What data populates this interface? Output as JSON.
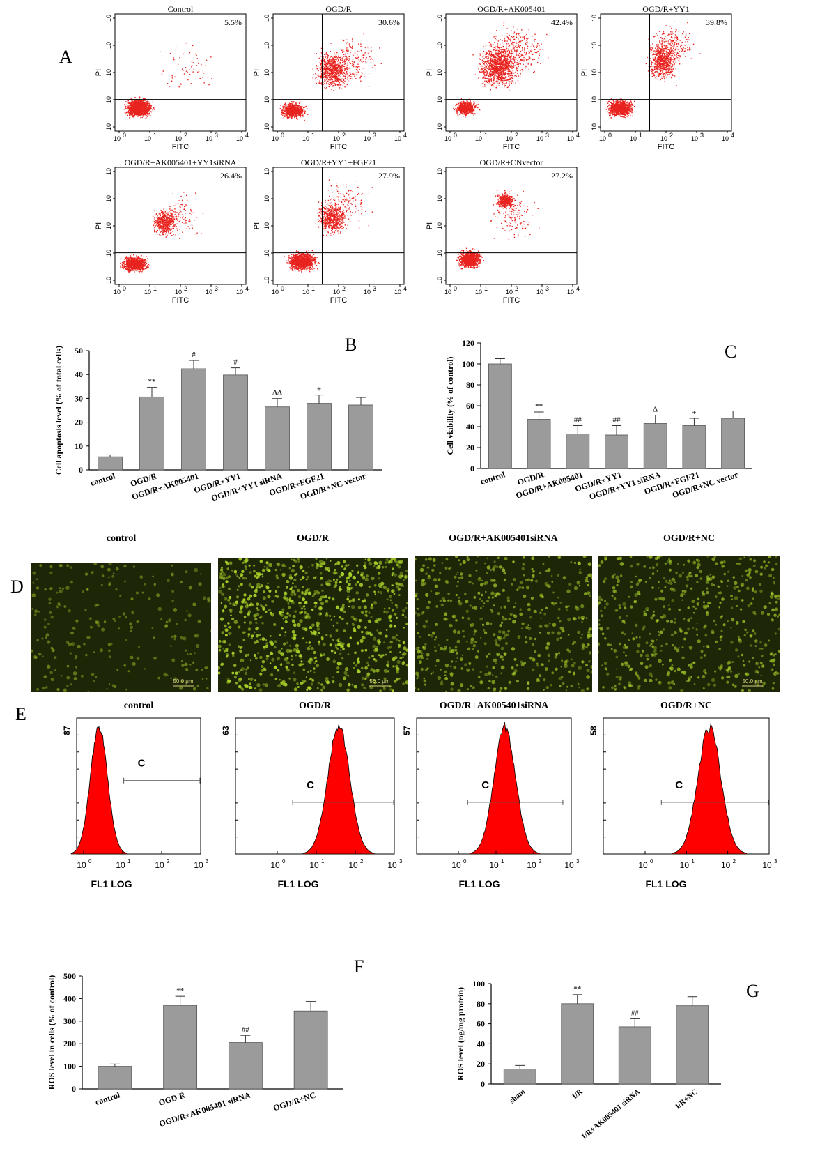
{
  "panel_letters": [
    "A",
    "B",
    "C",
    "D",
    "E",
    "F",
    "G"
  ],
  "flow_axes": {
    "x": "FITC",
    "y": "PI",
    "ticks": [
      "10",
      "10",
      "10",
      "10",
      "10"
    ],
    "exps": [
      "0",
      "1",
      "2",
      "3",
      "4"
    ]
  },
  "flow_panels": [
    {
      "title": "Control",
      "pct": "5.5%"
    },
    {
      "title": "OGD/R",
      "pct": "30.6%"
    },
    {
      "title": "OGD/R+AK005401",
      "pct": "42.4%"
    },
    {
      "title": "OGD/R+YY1",
      "pct": "39.8%"
    },
    {
      "title": "OGD/R+AK005401+YY1siRNA",
      "pct": "26.4%"
    },
    {
      "title": "OGD/R+YY1+FGF21",
      "pct": "27.9%"
    },
    {
      "title": "OGD/R+CNvector",
      "pct": "27.2%"
    }
  ],
  "micro_panels": [
    {
      "title": "control",
      "scale": "50.0 μm"
    },
    {
      "title": "OGD/R",
      "scale": "50.0 μm"
    },
    {
      "title": "OGD/R+AK005401siRNA",
      "scale": ""
    },
    {
      "title": "OGD/R+NC",
      "scale": "50.0 μm"
    }
  ],
  "hist_panels": [
    {
      "title": "control",
      "ymax": "87",
      "gate": "C",
      "xlabel": "FL1 LOG"
    },
    {
      "title": "OGD/R",
      "ymax": "63",
      "gate": "C",
      "xlabel": "FL1 LOG"
    },
    {
      "title": "OGD/R+AK005401siRNA",
      "ymax": "57",
      "gate": "C",
      "xlabel": "FL1 LOG"
    },
    {
      "title": "OGD/R+NC",
      "ymax": "58",
      "gate": "C",
      "xlabel": "FL1 LOG"
    }
  ],
  "colors": {
    "bar": "#9b9b9b",
    "dots": "#e8231f",
    "micro_bg": "#1e2608",
    "micro_cell": "#a8d028"
  },
  "chart_data": [
    {
      "id": "B",
      "type": "bar",
      "categories": [
        "control",
        "OGD/R",
        "OGD/R+AK005401",
        "OGD/R+YY1",
        "OGD/R+YY1 siRNA",
        "OGD/R+FGF21",
        "OGD/R+NC vector"
      ],
      "values": [
        5.5,
        30.6,
        42.4,
        39.8,
        26.4,
        27.9,
        27.2
      ],
      "errors": [
        0.8,
        4,
        3.5,
        3,
        3.5,
        3.5,
        3.2
      ],
      "marks": [
        "",
        "**",
        "#",
        "#",
        "ΔΔ",
        "+",
        ""
      ],
      "ylabel": "Cell apoptosis level (% of total cells)",
      "ylim": [
        0,
        50
      ],
      "yticks": [
        0,
        10,
        20,
        30,
        40,
        50
      ]
    },
    {
      "id": "C",
      "type": "bar",
      "categories": [
        "control",
        "OGD/R",
        "OGD/R+AK005401",
        "OGD/R+YY1",
        "OGD/R+YY1 siRNA",
        "OGD/R+FGF21",
        "OGD/R+NC vector"
      ],
      "values": [
        100,
        47,
        33,
        32,
        43,
        41,
        48
      ],
      "errors": [
        5,
        7,
        8,
        9,
        8,
        7,
        7
      ],
      "marks": [
        "",
        "**",
        "##",
        "##",
        "Δ",
        "+",
        ""
      ],
      "ylabel": "Cell viability (% of control)",
      "ylim": [
        0,
        120
      ],
      "yticks": [
        0,
        20,
        40,
        60,
        80,
        100,
        120
      ]
    },
    {
      "id": "F",
      "type": "bar",
      "categories": [
        "control",
        "OGD/R",
        "OGD/R+AK005401 siRNA",
        "OGD/R+NC"
      ],
      "values": [
        100,
        370,
        205,
        345
      ],
      "errors": [
        10,
        40,
        32,
        42
      ],
      "marks": [
        "",
        "**",
        "##",
        ""
      ],
      "ylabel": "ROS level in cells (% of control)",
      "ylim": [
        0,
        500
      ],
      "yticks": [
        0,
        100,
        200,
        300,
        400,
        500
      ]
    },
    {
      "id": "G",
      "type": "bar",
      "categories": [
        "sham",
        "I/R",
        "I/R+AK005401 siRNA",
        "I/R+NC"
      ],
      "values": [
        15,
        80,
        57,
        78
      ],
      "errors": [
        3.5,
        9,
        8,
        9
      ],
      "marks": [
        "",
        "**",
        "##",
        ""
      ],
      "ylabel": "ROS level (ng/mg protein)",
      "ylim": [
        0,
        100
      ],
      "yticks": [
        0,
        20,
        40,
        60,
        80,
        100
      ]
    }
  ]
}
